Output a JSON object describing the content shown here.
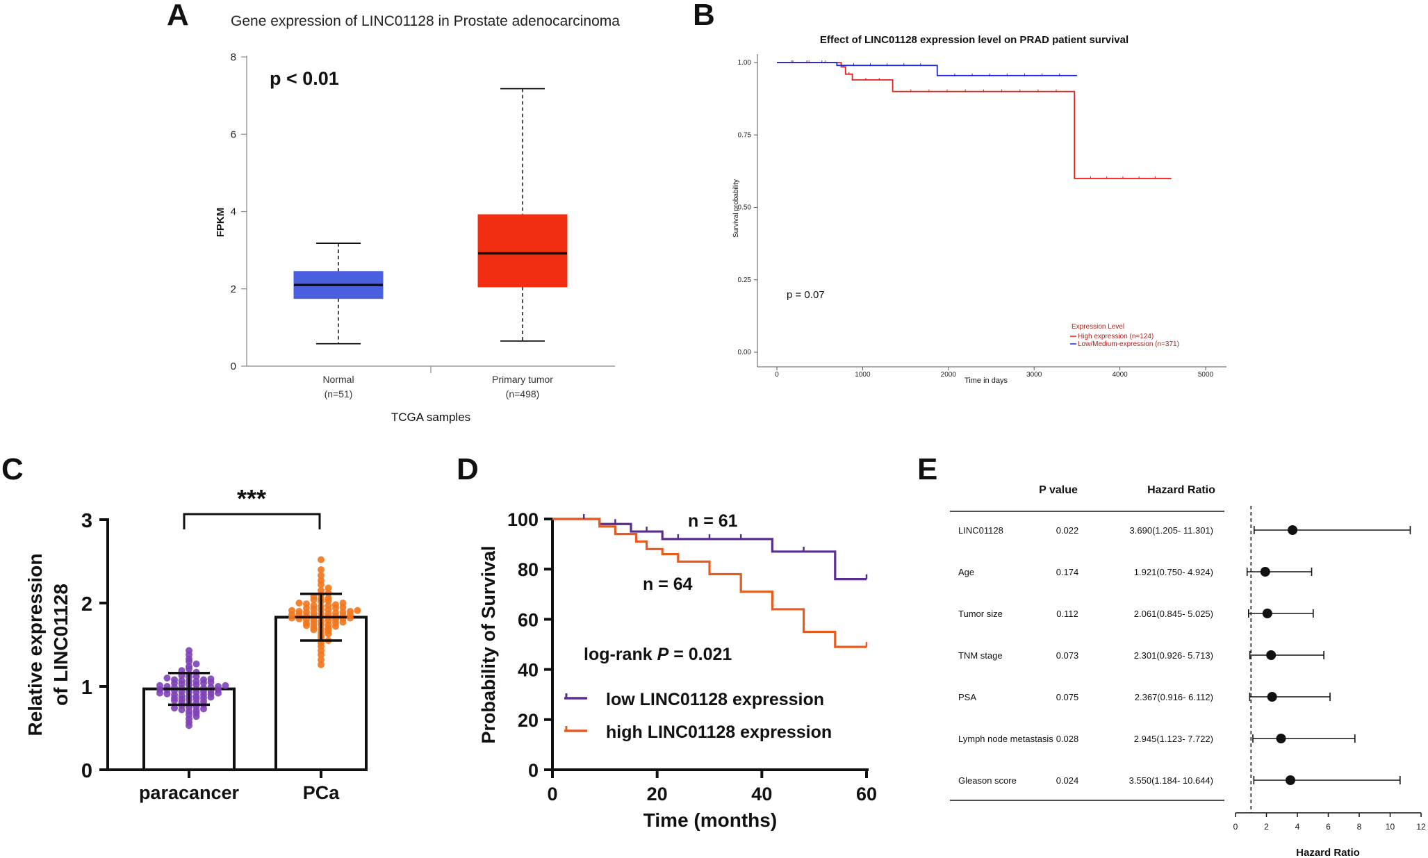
{
  "panels": {
    "A": "A",
    "B": "B",
    "C": "C",
    "D": "D",
    "E": "E"
  },
  "chart_data": [
    {
      "panel": "A",
      "type": "box",
      "title": "Gene expression of LINC01128 in Prostate adenocarcinoma",
      "xlabel": "TCGA samples",
      "ylabel": "FPKM",
      "ylim": [
        0,
        8
      ],
      "yticks": [
        "0",
        "2",
        "4",
        "6",
        "8"
      ],
      "annotation": "p < 0.01",
      "boxes": [
        {
          "name": "Normal",
          "n_label": "(n=51)",
          "min": 0.58,
          "q1": 1.75,
          "median": 2.1,
          "q3": 2.45,
          "max": 3.18,
          "color": "#4a5fe0"
        },
        {
          "name": "Primary tumor",
          "n_label": "(n=498)",
          "min": 0.65,
          "q1": 2.05,
          "median": 2.92,
          "q3": 3.92,
          "max": 7.18,
          "color": "#f22e12"
        }
      ]
    },
    {
      "panel": "B",
      "type": "line",
      "title": "Effect of LINC01128 expression level on PRAD patient survival",
      "xlabel": "Time in days",
      "ylabel": "Survival probability",
      "xlim": [
        0,
        5000
      ],
      "ylim": [
        0,
        1
      ],
      "xticks": [
        "0",
        "1000",
        "2000",
        "3000",
        "4000",
        "5000"
      ],
      "yticks": [
        "0.00",
        "0.25",
        "0.50",
        "0.75",
        "1.00"
      ],
      "annotation": "p = 0.07",
      "legend_title": "Expression Level",
      "series": [
        {
          "name": "High expression (n=124)",
          "color": "#e8201c",
          "x": [
            0,
            750,
            800,
            880,
            1350,
            3470,
            4600
          ],
          "y": [
            1.0,
            0.985,
            0.96,
            0.94,
            0.9,
            0.6,
            0.6
          ]
        },
        {
          "name": "Low/Medium-expression (n=371)",
          "color": "#1a24e0",
          "x": [
            0,
            700,
            1870,
            3500
          ],
          "y": [
            1.0,
            0.99,
            0.955,
            0.955
          ]
        }
      ]
    },
    {
      "panel": "C",
      "type": "bar",
      "categories": [
        "paracancer",
        "PCa"
      ],
      "values": [
        0.97,
        1.83
      ],
      "sd": [
        0.19,
        0.28
      ],
      "ylabel_line1": "Relative expression",
      "ylabel_line2": "of LINC01128",
      "ylim": [
        0,
        3
      ],
      "yticks": [
        "0",
        "1",
        "2",
        "3"
      ],
      "significance": "***",
      "colors": [
        "#7d43b5",
        "#f2761c"
      ],
      "points": [
        [
          0.53,
          0.57,
          0.61,
          0.64,
          0.66,
          0.68,
          0.7,
          0.71,
          0.72,
          0.73,
          0.74,
          0.75,
          0.76,
          0.77,
          0.78,
          0.79,
          0.8,
          0.81,
          0.82,
          0.83,
          0.84,
          0.85,
          0.86,
          0.87,
          0.88,
          0.89,
          0.9,
          0.91,
          0.92,
          0.93,
          0.94,
          0.95,
          0.96,
          0.97,
          0.98,
          0.99,
          1.0,
          1.01,
          1.02,
          1.03,
          1.04,
          1.05,
          1.06,
          1.07,
          1.08,
          1.09,
          1.1,
          1.11,
          1.12,
          1.13,
          1.15,
          1.17,
          1.19,
          1.21,
          1.24,
          1.27,
          1.3,
          1.33,
          1.38,
          1.43,
          0.85,
          0.92,
          0.96,
          1.0,
          1.04,
          0.88,
          0.94,
          0.98,
          1.02,
          0.9,
          0.95,
          0.99,
          1.06,
          0.86,
          0.93,
          0.97,
          1.01,
          1.08,
          0.91,
          0.96
        ],
        [
          1.26,
          1.32,
          1.38,
          1.43,
          1.48,
          1.52,
          1.55,
          1.58,
          1.61,
          1.63,
          1.65,
          1.67,
          1.69,
          1.71,
          1.72,
          1.74,
          1.75,
          1.76,
          1.78,
          1.79,
          1.8,
          1.81,
          1.82,
          1.83,
          1.84,
          1.85,
          1.86,
          1.87,
          1.88,
          1.89,
          1.9,
          1.91,
          1.92,
          1.94,
          1.95,
          1.97,
          1.98,
          2.0,
          2.02,
          2.04,
          2.06,
          2.08,
          2.1,
          2.12,
          2.15,
          2.18,
          2.22,
          2.27,
          2.33,
          2.4,
          2.52,
          1.7,
          1.76,
          1.82,
          1.86,
          1.9,
          1.94,
          1.73,
          1.79,
          1.84,
          1.88,
          1.92,
          1.96,
          2.0,
          1.68,
          1.77,
          1.83,
          1.87,
          1.91,
          1.99,
          2.05,
          1.74,
          1.8,
          1.85,
          1.89,
          1.93,
          1.97,
          2.03,
          1.81,
          1.86
        ]
      ]
    },
    {
      "panel": "D",
      "type": "line",
      "xlabel": "Time (months)",
      "ylabel": "Probability of Survival",
      "xlim": [
        0,
        60
      ],
      "ylim": [
        0,
        100
      ],
      "xticks": [
        "0",
        "20",
        "40",
        "60"
      ],
      "yticks": [
        "0",
        "20",
        "40",
        "60",
        "80",
        "100"
      ],
      "annotation_prefix": "log-rank ",
      "annotation_p": "P",
      "annotation_suffix": " = 0.021",
      "series": [
        {
          "name": "low LINC01128 expression",
          "label": "n = 61",
          "color": "#5b2d8e",
          "x": [
            0,
            9,
            15,
            21,
            42,
            54,
            60
          ],
          "y": [
            100,
            98,
            95,
            92,
            87,
            76,
            76
          ]
        },
        {
          "name": "high LINC01128 expression",
          "label": "n = 64",
          "color": "#e85a1e",
          "x": [
            0,
            9,
            12,
            16,
            18,
            21,
            24,
            30,
            36,
            42,
            48,
            54,
            60
          ],
          "y": [
            100,
            97,
            94,
            91,
            88,
            86,
            83,
            78,
            71,
            64,
            55,
            49,
            49
          ]
        }
      ]
    },
    {
      "panel": "E",
      "type": "forest",
      "header_p": "P value",
      "header_hr": "Hazard Ratio",
      "xlabel": "Hazard Ratio",
      "xlim": [
        0,
        12
      ],
      "xticks": [
        "0",
        "2",
        "4",
        "6",
        "8",
        "10",
        "12"
      ],
      "reference": 1,
      "rows": [
        {
          "name": "LINC01128",
          "p": "0.022",
          "hr_text": "3.690(1.205- 11.301)",
          "hr": 3.69,
          "lo": 1.205,
          "hi": 11.301
        },
        {
          "name": "Age",
          "p": "0.174",
          "hr_text": "1.921(0.750- 4.924)",
          "hr": 1.921,
          "lo": 0.75,
          "hi": 4.924
        },
        {
          "name": "Tumor size",
          "p": "0.112",
          "hr_text": "2.061(0.845- 5.025)",
          "hr": 2.061,
          "lo": 0.845,
          "hi": 5.025
        },
        {
          "name": "TNM stage",
          "p": "0.073",
          "hr_text": "2.301(0.926- 5.713)",
          "hr": 2.301,
          "lo": 0.926,
          "hi": 5.713
        },
        {
          "name": "PSA",
          "p": "0.075",
          "hr_text": "2.367(0.916- 6.112)",
          "hr": 2.367,
          "lo": 0.916,
          "hi": 6.112
        },
        {
          "name": "Lymph node metastasis",
          "p": "0.028",
          "hr_text": "2.945(1.123- 7.722)",
          "hr": 2.945,
          "lo": 1.123,
          "hi": 7.722
        },
        {
          "name": "Gleason score",
          "p": "0.024",
          "hr_text": "3.550(1.184- 10.644)",
          "hr": 3.55,
          "lo": 1.184,
          "hi": 10.644
        }
      ]
    }
  ]
}
